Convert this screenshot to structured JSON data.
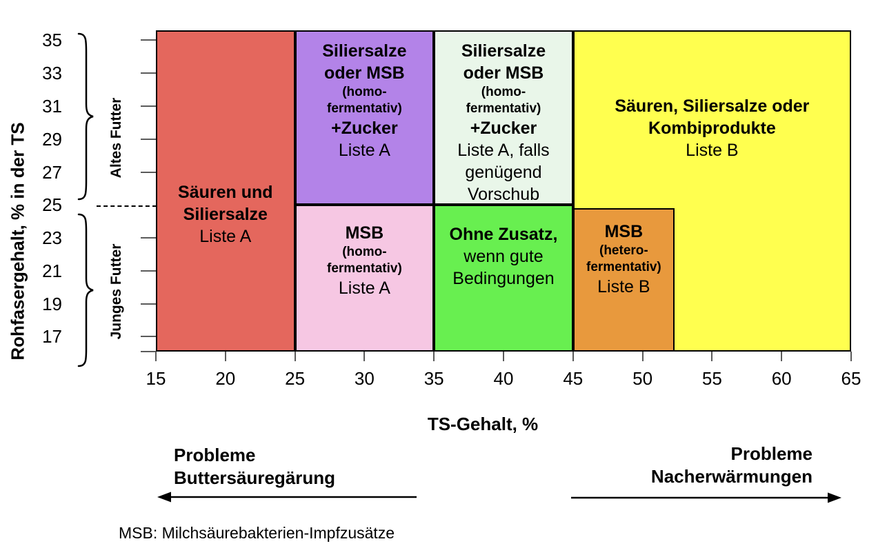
{
  "y_axis": {
    "title": "Rohfasergehalt, % in der TS",
    "tick_labels": [
      "35",
      "33",
      "31",
      "29",
      "27",
      "25",
      "23",
      "21",
      "19",
      "17"
    ],
    "tick_values": [
      35,
      33,
      31,
      29,
      27,
      25,
      23,
      21,
      19,
      17
    ],
    "group_upper_label": "Altes Futter",
    "group_lower_label": "Junges Futter"
  },
  "x_axis": {
    "title": "TS-Gehalt, %",
    "tick_labels": [
      "15",
      "20",
      "25",
      "30",
      "35",
      "40",
      "45",
      "50",
      "55",
      "60",
      "65"
    ],
    "tick_values": [
      15,
      20,
      25,
      30,
      35,
      40,
      45,
      50,
      55,
      60,
      65
    ]
  },
  "annotations": {
    "left_line1": "Probleme",
    "left_line2": "Buttersäuregärung",
    "right_line1": "Probleme",
    "right_line2": "Nacherwärmungen"
  },
  "footnote": "MSB: Milchsäurebakterien-Impfzusätze",
  "chart_data": {
    "type": "heatmap",
    "title": "",
    "xlabel": "TS-Gehalt, %",
    "ylabel": "Rohfasergehalt, % in der TS",
    "xlim": [
      15,
      65
    ],
    "ylim": [
      16.1,
      35.6
    ],
    "x_ticks": [
      15,
      20,
      25,
      30,
      35,
      40,
      45,
      50,
      55,
      60,
      65
    ],
    "y_ticks": [
      17,
      19,
      21,
      23,
      25,
      27,
      29,
      31,
      33,
      35
    ],
    "y_split_value": 25,
    "grid": false,
    "regions": [
      {
        "id": "saeuren-und-siliersalze",
        "x0": 15,
        "x1": 25,
        "y_top": 35.6,
        "y_bottom": 16.1,
        "color": "#e4675d",
        "text_top_pct": 47,
        "lines": [
          {
            "text": "Säuren und",
            "style": "b"
          },
          {
            "text": "Siliersalze",
            "style": "b"
          },
          {
            "text": "Liste A",
            "style": "r"
          }
        ]
      },
      {
        "id": "siliersalze-oder-msb-zucker",
        "x0": 25,
        "x1": 35,
        "y_top": 35.6,
        "y_bottom": 25,
        "color": "#b383e8",
        "text_top_pct": 5,
        "lines": [
          {
            "text": "Siliersalze",
            "style": "b"
          },
          {
            "text": "oder MSB",
            "style": "b"
          },
          {
            "text": "(homo-",
            "style": "s"
          },
          {
            "text": "fermentativ)",
            "style": "s"
          },
          {
            "text": "+Zucker",
            "style": "b"
          },
          {
            "text": "Liste A",
            "style": "r"
          }
        ]
      },
      {
        "id": "siliersalze-oder-msb-zucker-vorschub",
        "x0": 35,
        "x1": 45,
        "y_top": 35.6,
        "y_bottom": 25,
        "color": "#e9f6e9",
        "text_top_pct": 5,
        "lines": [
          {
            "text": "Siliersalze",
            "style": "b"
          },
          {
            "text": "oder MSB",
            "style": "b"
          },
          {
            "text": "(homo-",
            "style": "s"
          },
          {
            "text": "fermentativ)",
            "style": "s"
          },
          {
            "text": "+Zucker",
            "style": "b"
          },
          {
            "text": "Liste A, falls",
            "style": "r"
          },
          {
            "text": "genügend",
            "style": "r"
          },
          {
            "text": "Vorschub",
            "style": "r"
          }
        ]
      },
      {
        "id": "saeuren-siliersalze-kombiprodukte",
        "x0": 45,
        "x1": 65,
        "y_top": 35.6,
        "y_bottom": 16.1,
        "color": "#ffff4f",
        "text_top_pct": 20,
        "lines": [
          {
            "text": "Säuren, Siliersalze oder",
            "style": "b"
          },
          {
            "text": "Kombiprodukte",
            "style": "b"
          },
          {
            "text": "Liste B",
            "style": "r"
          }
        ]
      },
      {
        "id": "msb-homofermentativ",
        "x0": 25,
        "x1": 35,
        "y_top": 25,
        "y_bottom": 16.1,
        "color": "#f6c7e3",
        "text_top_pct": 11,
        "lines": [
          {
            "text": "MSB",
            "style": "b"
          },
          {
            "text": "(homo-",
            "style": "s"
          },
          {
            "text": "fermentativ)",
            "style": "s"
          },
          {
            "text": "Liste A",
            "style": "r"
          }
        ]
      },
      {
        "id": "ohne-zusatz",
        "x0": 35,
        "x1": 45,
        "y_top": 25,
        "y_bottom": 16.1,
        "color": "#68ef50",
        "text_top_pct": 12,
        "lines": [
          {
            "text": "Ohne Zusatz,",
            "style": "b"
          },
          {
            "text": "wenn gute",
            "style": "r"
          },
          {
            "text": "Bedingungen",
            "style": "r"
          }
        ]
      },
      {
        "id": "msb-heterofermentativ",
        "x0": 45,
        "x1": 52.3,
        "y_top": 24.8,
        "y_bottom": 16.1,
        "color": "#e8993d",
        "text_top_pct": 8,
        "lines": [
          {
            "text": "MSB",
            "style": "b"
          },
          {
            "text": "(hetero-",
            "style": "s"
          },
          {
            "text": "fermentativ)",
            "style": "s"
          },
          {
            "text": "Liste B",
            "style": "r"
          }
        ]
      }
    ]
  }
}
